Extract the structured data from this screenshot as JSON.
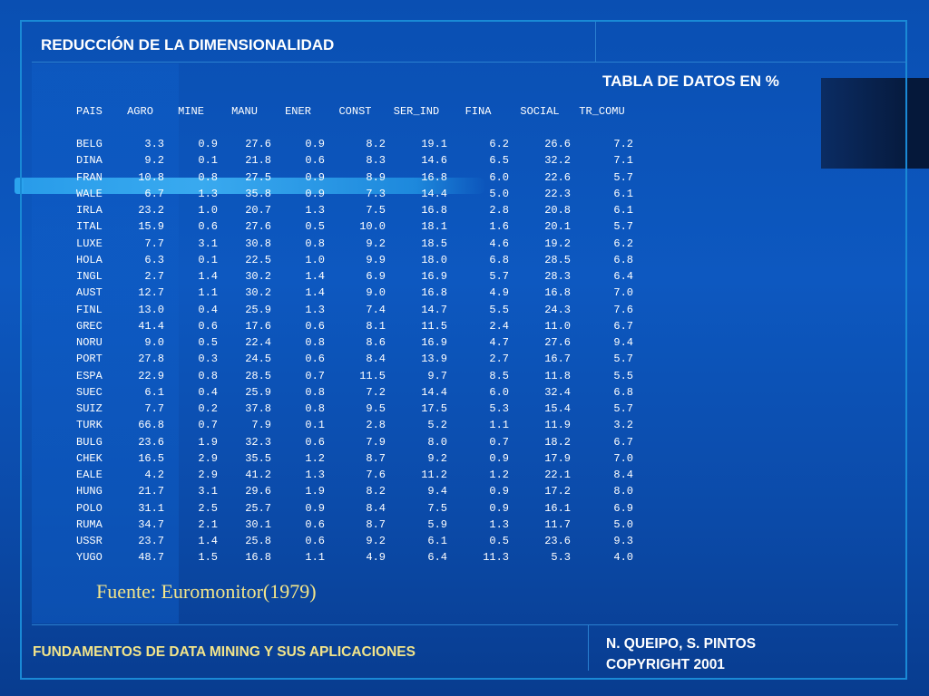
{
  "slide": {
    "title": "REDUCCIÓN DE LA DIMENSIONALIDAD",
    "subtitle": "TABLA DE DATOS EN %",
    "source": "Fuente: Euromonitor(1979)",
    "footer_left": "FUNDAMENTOS DE DATA MINING Y SUS APLICACIONES",
    "footer_right_line1": "N. QUEIPO, S. PINTOS",
    "footer_right_line2": "COPYRIGHT 2001"
  },
  "colors": {
    "background": "#0d58c0",
    "title_text": "#ffffff",
    "footer_accent": "#f2e48a",
    "frame_line": "#1a8ad6"
  },
  "table": {
    "headers": [
      "PAIS",
      "AGRO",
      "MINE",
      "MANU",
      "ENER",
      "CONST",
      "SER_IND",
      "FINA",
      "SOCIAL",
      "TR_COMU"
    ],
    "rows": [
      [
        "BELG",
        "3.3",
        "0.9",
        "27.6",
        "0.9",
        "8.2",
        "19.1",
        "6.2",
        "26.6",
        "7.2"
      ],
      [
        "DINA",
        "9.2",
        "0.1",
        "21.8",
        "0.6",
        "8.3",
        "14.6",
        "6.5",
        "32.2",
        "7.1"
      ],
      [
        "FRAN",
        "10.8",
        "0.8",
        "27.5",
        "0.9",
        "8.9",
        "16.8",
        "6.0",
        "22.6",
        "5.7"
      ],
      [
        "WALE",
        "6.7",
        "1.3",
        "35.8",
        "0.9",
        "7.3",
        "14.4",
        "5.0",
        "22.3",
        "6.1"
      ],
      [
        "IRLA",
        "23.2",
        "1.0",
        "20.7",
        "1.3",
        "7.5",
        "16.8",
        "2.8",
        "20.8",
        "6.1"
      ],
      [
        "ITAL",
        "15.9",
        "0.6",
        "27.6",
        "0.5",
        "10.0",
        "18.1",
        "1.6",
        "20.1",
        "5.7"
      ],
      [
        "LUXE",
        "7.7",
        "3.1",
        "30.8",
        "0.8",
        "9.2",
        "18.5",
        "4.6",
        "19.2",
        "6.2"
      ],
      [
        "HOLA",
        "6.3",
        "0.1",
        "22.5",
        "1.0",
        "9.9",
        "18.0",
        "6.8",
        "28.5",
        "6.8"
      ],
      [
        "INGL",
        "2.7",
        "1.4",
        "30.2",
        "1.4",
        "6.9",
        "16.9",
        "5.7",
        "28.3",
        "6.4"
      ],
      [
        "AUST",
        "12.7",
        "1.1",
        "30.2",
        "1.4",
        "9.0",
        "16.8",
        "4.9",
        "16.8",
        "7.0"
      ],
      [
        "FINL",
        "13.0",
        "0.4",
        "25.9",
        "1.3",
        "7.4",
        "14.7",
        "5.5",
        "24.3",
        "7.6"
      ],
      [
        "GREC",
        "41.4",
        "0.6",
        "17.6",
        "0.6",
        "8.1",
        "11.5",
        "2.4",
        "11.0",
        "6.7"
      ],
      [
        "NORU",
        "9.0",
        "0.5",
        "22.4",
        "0.8",
        "8.6",
        "16.9",
        "4.7",
        "27.6",
        "9.4"
      ],
      [
        "PORT",
        "27.8",
        "0.3",
        "24.5",
        "0.6",
        "8.4",
        "13.9",
        "2.7",
        "16.7",
        "5.7"
      ],
      [
        "ESPA",
        "22.9",
        "0.8",
        "28.5",
        "0.7",
        "11.5",
        "9.7",
        "8.5",
        "11.8",
        "5.5"
      ],
      [
        "SUEC",
        "6.1",
        "0.4",
        "25.9",
        "0.8",
        "7.2",
        "14.4",
        "6.0",
        "32.4",
        "6.8"
      ],
      [
        "SUIZ",
        "7.7",
        "0.2",
        "37.8",
        "0.8",
        "9.5",
        "17.5",
        "5.3",
        "15.4",
        "5.7"
      ],
      [
        "TURK",
        "66.8",
        "0.7",
        "7.9",
        "0.1",
        "2.8",
        "5.2",
        "1.1",
        "11.9",
        "3.2"
      ],
      [
        "BULG",
        "23.6",
        "1.9",
        "32.3",
        "0.6",
        "7.9",
        "8.0",
        "0.7",
        "18.2",
        "6.7"
      ],
      [
        "CHEK",
        "16.5",
        "2.9",
        "35.5",
        "1.2",
        "8.7",
        "9.2",
        "0.9",
        "17.9",
        "7.0"
      ],
      [
        "EALE",
        "4.2",
        "2.9",
        "41.2",
        "1.3",
        "7.6",
        "11.2",
        "1.2",
        "22.1",
        "8.4"
      ],
      [
        "HUNG",
        "21.7",
        "3.1",
        "29.6",
        "1.9",
        "8.2",
        "9.4",
        "0.9",
        "17.2",
        "8.0"
      ],
      [
        "POLO",
        "31.1",
        "2.5",
        "25.7",
        "0.9",
        "8.4",
        "7.5",
        "0.9",
        "16.1",
        "6.9"
      ],
      [
        "RUMA",
        "34.7",
        "2.1",
        "30.1",
        "0.6",
        "8.7",
        "5.9",
        "1.3",
        "11.7",
        "5.0"
      ],
      [
        "USSR",
        "23.7",
        "1.4",
        "25.8",
        "0.6",
        "9.2",
        "6.1",
        "0.5",
        "23.6",
        "9.3"
      ],
      [
        "YUGO",
        "48.7",
        "1.5",
        "16.8",
        "1.1",
        "4.9",
        "6.4",
        "11.3",
        "5.3",
        "4.0"
      ]
    ]
  }
}
